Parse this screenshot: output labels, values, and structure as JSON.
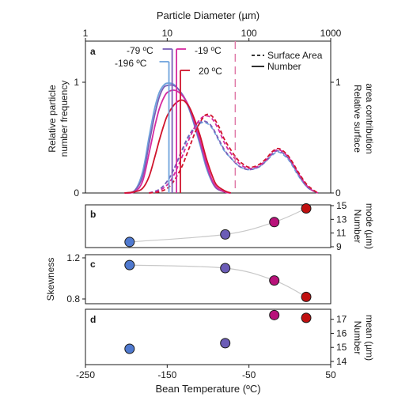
{
  "colors": {
    "c_m196": "#6fa3dc",
    "c_m79": "#7a5fb8",
    "c_m19": "#d62aa0",
    "c_20": "#d0142c",
    "marker_m196": "#4f79cf",
    "marker_m79": "#6b5cb6",
    "marker_m19": "#b8127a",
    "marker_20": "#c01010",
    "fit_line": "#c8c8c8",
    "vline_dashed": "#e07aa8"
  },
  "chart_data": [
    {
      "id": "a",
      "panel_label": "a",
      "type": "line",
      "top_xlabel": "Particle Diameter (µm)",
      "x_scale": "log",
      "xlim": [
        1,
        1000
      ],
      "xticks": [
        1,
        10,
        100,
        1000
      ],
      "xtick_labels": [
        "1",
        "10",
        "100",
        "1000"
      ],
      "ylabel_left": "Relative particle number frequency",
      "ylabel_left_lines": [
        "Relative particle",
        "number frequency"
      ],
      "ylabel_right_lines": [
        "Relative surface",
        "area contribution"
      ],
      "ylim": [
        0,
        1.3
      ],
      "yticks_left": [
        "0",
        "1"
      ],
      "yticks_right": [
        "0",
        "1"
      ],
      "legend": [
        {
          "label": "Surface Area",
          "style": "dashed"
        },
        {
          "label": "Number",
          "style": "solid"
        }
      ],
      "legend_position": "top-right",
      "annotations": [
        {
          "text": "-79 ºC",
          "series": "-79 ºC"
        },
        {
          "text": "-196 ºC",
          "series": "-196 ºC"
        },
        {
          "text": "-19 ºC",
          "series": "-19 ºC"
        },
        {
          "text": "20 ºC",
          "series": "20 ºC"
        }
      ],
      "vlines": [
        {
          "x": 10.5,
          "series": "-196 ºC"
        },
        {
          "x": 11.5,
          "series": "-79 ºC"
        },
        {
          "x": 13.0,
          "series": "-19 ºC"
        },
        {
          "x": 14.5,
          "series": "20 ºC"
        },
        {
          "x": 68,
          "style": "dashed"
        }
      ],
      "series": [
        {
          "name": "-196 ºC",
          "kind": "number",
          "color_key": "c_m196",
          "points": [
            [
              3,
              0
            ],
            [
              4,
              0.02
            ],
            [
              5,
              0.18
            ],
            [
              6,
              0.48
            ],
            [
              7,
              0.72
            ],
            [
              8,
              0.86
            ],
            [
              9,
              0.92
            ],
            [
              10,
              0.94
            ],
            [
              12,
              0.93
            ],
            [
              14,
              0.88
            ],
            [
              17,
              0.78
            ],
            [
              20,
              0.65
            ],
            [
              25,
              0.42
            ],
            [
              30,
              0.22
            ],
            [
              35,
              0.1
            ],
            [
              40,
              0.04
            ],
            [
              50,
              0.01
            ],
            [
              60,
              0
            ]
          ]
        },
        {
          "name": "-79 ºC",
          "kind": "number",
          "color_key": "c_m79",
          "points": [
            [
              3,
              0
            ],
            [
              4,
              0.02
            ],
            [
              5,
              0.14
            ],
            [
              6,
              0.42
            ],
            [
              7,
              0.66
            ],
            [
              8,
              0.82
            ],
            [
              9,
              0.9
            ],
            [
              10,
              0.92
            ],
            [
              12,
              0.92
            ],
            [
              14,
              0.88
            ],
            [
              17,
              0.79
            ],
            [
              20,
              0.66
            ],
            [
              25,
              0.44
            ],
            [
              30,
              0.24
            ],
            [
              35,
              0.11
            ],
            [
              40,
              0.04
            ],
            [
              50,
              0.01
            ],
            [
              60,
              0
            ]
          ]
        },
        {
          "name": "-19 ºC",
          "kind": "number",
          "color_key": "c_m19",
          "points": [
            [
              3,
              0
            ],
            [
              4,
              0.01
            ],
            [
              5,
              0.1
            ],
            [
              6,
              0.34
            ],
            [
              7,
              0.56
            ],
            [
              8,
              0.72
            ],
            [
              9,
              0.81
            ],
            [
              10,
              0.86
            ],
            [
              12,
              0.88
            ],
            [
              14,
              0.86
            ],
            [
              17,
              0.79
            ],
            [
              20,
              0.68
            ],
            [
              25,
              0.46
            ],
            [
              30,
              0.26
            ],
            [
              35,
              0.12
            ],
            [
              40,
              0.05
            ],
            [
              50,
              0.01
            ],
            [
              60,
              0
            ]
          ]
        },
        {
          "name": "20 ºC",
          "kind": "number",
          "color_key": "c_20",
          "points": [
            [
              3,
              0
            ],
            [
              4,
              0.01
            ],
            [
              5,
              0.04
            ],
            [
              6,
              0.14
            ],
            [
              7,
              0.3
            ],
            [
              8,
              0.45
            ],
            [
              9,
              0.57
            ],
            [
              10,
              0.66
            ],
            [
              12,
              0.75
            ],
            [
              14,
              0.79
            ],
            [
              16,
              0.79
            ],
            [
              18,
              0.75
            ],
            [
              20,
              0.69
            ],
            [
              25,
              0.5
            ],
            [
              30,
              0.3
            ],
            [
              35,
              0.16
            ],
            [
              40,
              0.07
            ],
            [
              50,
              0.02
            ],
            [
              60,
              0
            ]
          ]
        },
        {
          "name": "-196 ºC",
          "kind": "surface",
          "color_key": "c_m196",
          "points": [
            [
              6,
              0
            ],
            [
              8,
              0.03
            ],
            [
              10,
              0.1
            ],
            [
              12,
              0.2
            ],
            [
              15,
              0.35
            ],
            [
              18,
              0.47
            ],
            [
              22,
              0.56
            ],
            [
              26,
              0.6
            ],
            [
              30,
              0.6
            ],
            [
              35,
              0.56
            ],
            [
              42,
              0.46
            ],
            [
              50,
              0.36
            ],
            [
              60,
              0.3
            ],
            [
              70,
              0.25
            ],
            [
              80,
              0.22
            ],
            [
              100,
              0.2
            ],
            [
              130,
              0.22
            ],
            [
              160,
              0.27
            ],
            [
              190,
              0.32
            ],
            [
              220,
              0.35
            ],
            [
              250,
              0.34
            ],
            [
              300,
              0.29
            ],
            [
              350,
              0.22
            ],
            [
              400,
              0.15
            ],
            [
              500,
              0.06
            ],
            [
              600,
              0.02
            ],
            [
              700,
              0
            ]
          ]
        },
        {
          "name": "-79 ºC",
          "kind": "surface",
          "color_key": "c_m79",
          "points": [
            [
              6,
              0
            ],
            [
              8,
              0.03
            ],
            [
              10,
              0.1
            ],
            [
              12,
              0.2
            ],
            [
              15,
              0.36
            ],
            [
              18,
              0.48
            ],
            [
              22,
              0.57
            ],
            [
              26,
              0.61
            ],
            [
              30,
              0.61
            ],
            [
              35,
              0.57
            ],
            [
              42,
              0.47
            ],
            [
              50,
              0.37
            ],
            [
              60,
              0.3
            ],
            [
              70,
              0.25
            ],
            [
              80,
              0.22
            ],
            [
              100,
              0.2
            ],
            [
              130,
              0.22
            ],
            [
              160,
              0.27
            ],
            [
              190,
              0.33
            ],
            [
              220,
              0.36
            ],
            [
              250,
              0.35
            ],
            [
              300,
              0.3
            ],
            [
              350,
              0.23
            ],
            [
              400,
              0.16
            ],
            [
              500,
              0.06
            ],
            [
              600,
              0.02
            ],
            [
              700,
              0
            ]
          ]
        },
        {
          "name": "-19 ºC",
          "kind": "surface",
          "color_key": "c_m19",
          "points": [
            [
              6,
              0
            ],
            [
              8,
              0.02
            ],
            [
              10,
              0.07
            ],
            [
              12,
              0.15
            ],
            [
              15,
              0.3
            ],
            [
              18,
              0.44
            ],
            [
              22,
              0.57
            ],
            [
              26,
              0.64
            ],
            [
              30,
              0.66
            ],
            [
              35,
              0.64
            ],
            [
              42,
              0.55
            ],
            [
              50,
              0.43
            ],
            [
              60,
              0.34
            ],
            [
              70,
              0.28
            ],
            [
              80,
              0.24
            ],
            [
              100,
              0.21
            ],
            [
              130,
              0.23
            ],
            [
              160,
              0.28
            ],
            [
              190,
              0.34
            ],
            [
              220,
              0.37
            ],
            [
              250,
              0.36
            ],
            [
              300,
              0.31
            ],
            [
              350,
              0.24
            ],
            [
              400,
              0.17
            ],
            [
              500,
              0.07
            ],
            [
              600,
              0.02
            ],
            [
              700,
              0
            ]
          ]
        },
        {
          "name": "20 ºC",
          "kind": "surface",
          "color_key": "c_20",
          "points": [
            [
              6,
              0
            ],
            [
              8,
              0.01
            ],
            [
              10,
              0.04
            ],
            [
              12,
              0.1
            ],
            [
              15,
              0.22
            ],
            [
              18,
              0.36
            ],
            [
              22,
              0.52
            ],
            [
              26,
              0.62
            ],
            [
              30,
              0.67
            ],
            [
              35,
              0.66
            ],
            [
              42,
              0.58
            ],
            [
              50,
              0.46
            ],
            [
              60,
              0.37
            ],
            [
              70,
              0.3
            ],
            [
              80,
              0.26
            ],
            [
              100,
              0.22
            ],
            [
              130,
              0.24
            ],
            [
              160,
              0.29
            ],
            [
              190,
              0.35
            ],
            [
              220,
              0.38
            ],
            [
              250,
              0.37
            ],
            [
              300,
              0.32
            ],
            [
              350,
              0.25
            ],
            [
              400,
              0.18
            ],
            [
              500,
              0.08
            ],
            [
              600,
              0.03
            ],
            [
              700,
              0
            ]
          ]
        }
      ]
    },
    {
      "id": "b",
      "panel_label": "b",
      "type": "scatter",
      "ylabel_right_lines": [
        "Number",
        "mode (µm)"
      ],
      "ylim": [
        9,
        15
      ],
      "yticks": [
        9,
        11,
        13,
        15
      ],
      "ytick_labels": [
        "9",
        "11",
        "13",
        "15"
      ],
      "xlim": [
        -250,
        50
      ],
      "fit": true,
      "points": [
        {
          "x": -196,
          "y": 9.7,
          "color_key": "marker_m196"
        },
        {
          "x": -79,
          "y": 10.8,
          "color_key": "marker_m79"
        },
        {
          "x": -19,
          "y": 12.6,
          "color_key": "marker_m19"
        },
        {
          "x": 20,
          "y": 14.6,
          "color_key": "marker_20"
        }
      ]
    },
    {
      "id": "c",
      "panel_label": "c",
      "type": "scatter",
      "ylabel_left": "Skewness",
      "ylim": [
        0.8,
        1.2
      ],
      "yticks": [
        0.8,
        1.2
      ],
      "ytick_labels": [
        "0.8",
        "1.2"
      ],
      "xlim": [
        -250,
        50
      ],
      "fit": true,
      "points": [
        {
          "x": -196,
          "y": 1.13,
          "color_key": "marker_m196"
        },
        {
          "x": -79,
          "y": 1.1,
          "color_key": "marker_m79"
        },
        {
          "x": -19,
          "y": 0.98,
          "color_key": "marker_m19"
        },
        {
          "x": 20,
          "y": 0.82,
          "color_key": "marker_20"
        }
      ]
    },
    {
      "id": "d",
      "panel_label": "d",
      "type": "scatter",
      "ylabel_right_lines": [
        "Number",
        "mean (µm)"
      ],
      "ylim": [
        14,
        17.6
      ],
      "yticks": [
        14,
        15,
        16,
        17
      ],
      "ytick_labels": [
        "14",
        "15",
        "16",
        "17"
      ],
      "xlim": [
        -250,
        50
      ],
      "fit": false,
      "xlabel": "Bean Temperature (ºC)",
      "xticks": [
        -250,
        -150,
        -50,
        50
      ],
      "xtick_labels": [
        "-250",
        "-150",
        "-50",
        "50"
      ],
      "points": [
        {
          "x": -196,
          "y": 14.9,
          "color_key": "marker_m196"
        },
        {
          "x": -79,
          "y": 15.3,
          "color_key": "marker_m79"
        },
        {
          "x": -19,
          "y": 17.3,
          "color_key": "marker_m19"
        },
        {
          "x": 20,
          "y": 17.1,
          "color_key": "marker_20"
        }
      ]
    }
  ]
}
